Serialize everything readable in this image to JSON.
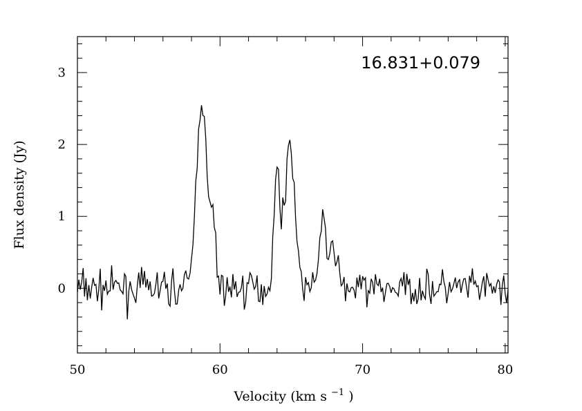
{
  "chart_data": {
    "type": "line",
    "annotation": "16.831+0.079",
    "xlabel": "Velocity (km s",
    "xlabel_sup": "−1",
    "xlabel_suffix": ")",
    "ylabel": "Flux density (Jy)",
    "xlim": [
      50,
      80.2
    ],
    "ylim": [
      -0.9,
      3.5
    ],
    "x_ticks": [
      50,
      60,
      70,
      80
    ],
    "y_ticks": [
      0,
      1,
      2,
      3
    ],
    "x_minor_step": 2,
    "y_minor_step": 0.2,
    "grid": false,
    "line_color": "#000000",
    "features": {
      "noise_rms": 0.12,
      "baseline_start": 50,
      "baseline_end": 80.2,
      "sample_step": 0.1,
      "peaks": [
        {
          "center": 58.7,
          "peak": 2.65
        },
        {
          "center": 59.5,
          "peak": 0.8
        },
        {
          "center": 64.0,
          "peak": 1.55
        },
        {
          "center": 64.9,
          "peak": 2.02
        },
        {
          "center": 67.2,
          "peak": 1.08
        },
        {
          "center": 68.0,
          "peak": 0.62
        }
      ]
    }
  }
}
